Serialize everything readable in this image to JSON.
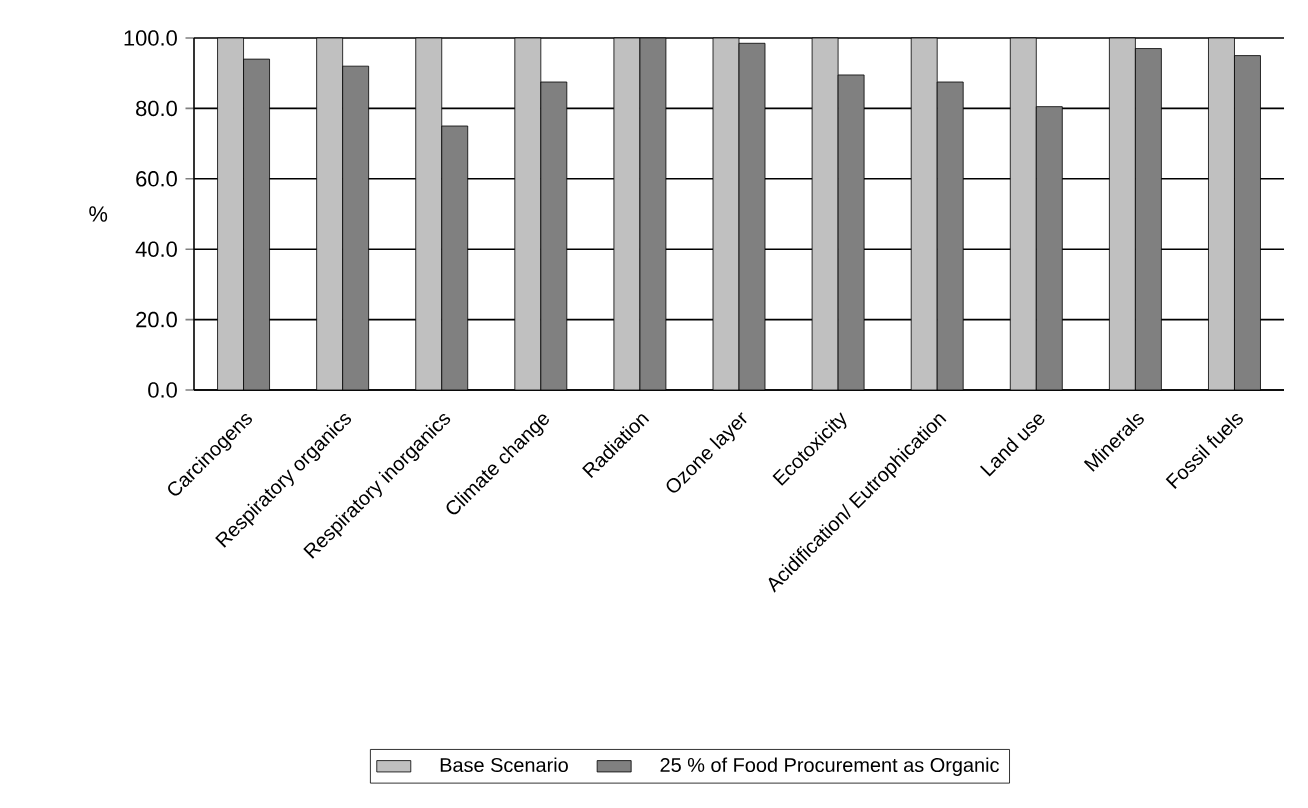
{
  "chart_data": {
    "type": "bar",
    "ylabel": "%",
    "categories": [
      "Carcinogens",
      "Respiratory organics",
      "Respiratory inorganics",
      "Climate change",
      "Radiation",
      "Ozone layer",
      "Ecotoxicity",
      "Acidification/ Eutrophication",
      "Land use",
      "Minerals",
      "Fossil fuels"
    ],
    "series": [
      {
        "name": "Base Scenario",
        "color": "#c0c0c0",
        "values": [
          100,
          100,
          100,
          100,
          100,
          100,
          100,
          100,
          100,
          100,
          100
        ]
      },
      {
        "name": "25 % of Food Procurement as Organic",
        "color": "#808080",
        "values": [
          94,
          92,
          75,
          87.5,
          100,
          98.5,
          89.5,
          87.5,
          80.5,
          97,
          95
        ]
      }
    ],
    "ylim": [
      0,
      100
    ],
    "yticks": [
      {
        "value": 0,
        "label": "0.0"
      },
      {
        "value": 20,
        "label": "20.0"
      },
      {
        "value": 40,
        "label": "40.0"
      },
      {
        "value": 60,
        "label": "60.0"
      },
      {
        "value": 80,
        "label": "80.0"
      },
      {
        "value": 100,
        "label": "100.0"
      }
    ],
    "grid": "y",
    "legend": "bottom"
  }
}
